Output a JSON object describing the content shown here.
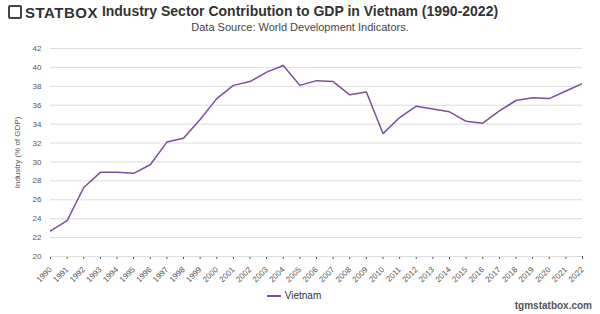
{
  "chart_data": {
    "type": "line",
    "title": "Industry Sector Contribution to GDP in Vietnam (1990-2022)",
    "subtitle": "Data Source: World Development Indicators.",
    "logo": "STATBOX",
    "watermark": "tgmstatbox.com",
    "y_label": "Industry (% of GDP)",
    "x": [
      1990,
      1991,
      1992,
      1993,
      1994,
      1995,
      1996,
      1997,
      1998,
      1999,
      2000,
      2001,
      2002,
      2003,
      2004,
      2005,
      2006,
      2007,
      2008,
      2009,
      2010,
      2011,
      2012,
      2013,
      2014,
      2015,
      2016,
      2017,
      2018,
      2019,
      2020,
      2021,
      2022
    ],
    "series": [
      {
        "name": "Vietnam",
        "color": "#7b4f9d",
        "values": [
          22.7,
          23.8,
          27.3,
          28.9,
          28.9,
          28.8,
          29.7,
          32.1,
          32.5,
          34.5,
          36.7,
          38.1,
          38.5,
          39.5,
          40.2,
          38.1,
          38.6,
          38.5,
          37.1,
          37.4,
          33.0,
          34.7,
          35.9,
          35.6,
          35.3,
          34.3,
          34.1,
          35.4,
          36.5,
          36.8,
          36.7,
          37.5,
          38.3
        ]
      }
    ],
    "xlim": [
      1990,
      2022
    ],
    "xticks": [
      1990,
      1991,
      1992,
      1993,
      1994,
      1995,
      1996,
      1997,
      1998,
      1999,
      2000,
      2001,
      2002,
      2003,
      2004,
      2005,
      2006,
      2007,
      2008,
      2009,
      2010,
      2011,
      2012,
      2013,
      2014,
      2015,
      2016,
      2017,
      2018,
      2019,
      2020,
      2021,
      2022
    ],
    "ylim": [
      20,
      42
    ],
    "yticks": [
      20,
      22,
      24,
      26,
      28,
      30,
      32,
      34,
      36,
      38,
      40,
      42
    ],
    "grid": true,
    "legend": "bottom"
  }
}
